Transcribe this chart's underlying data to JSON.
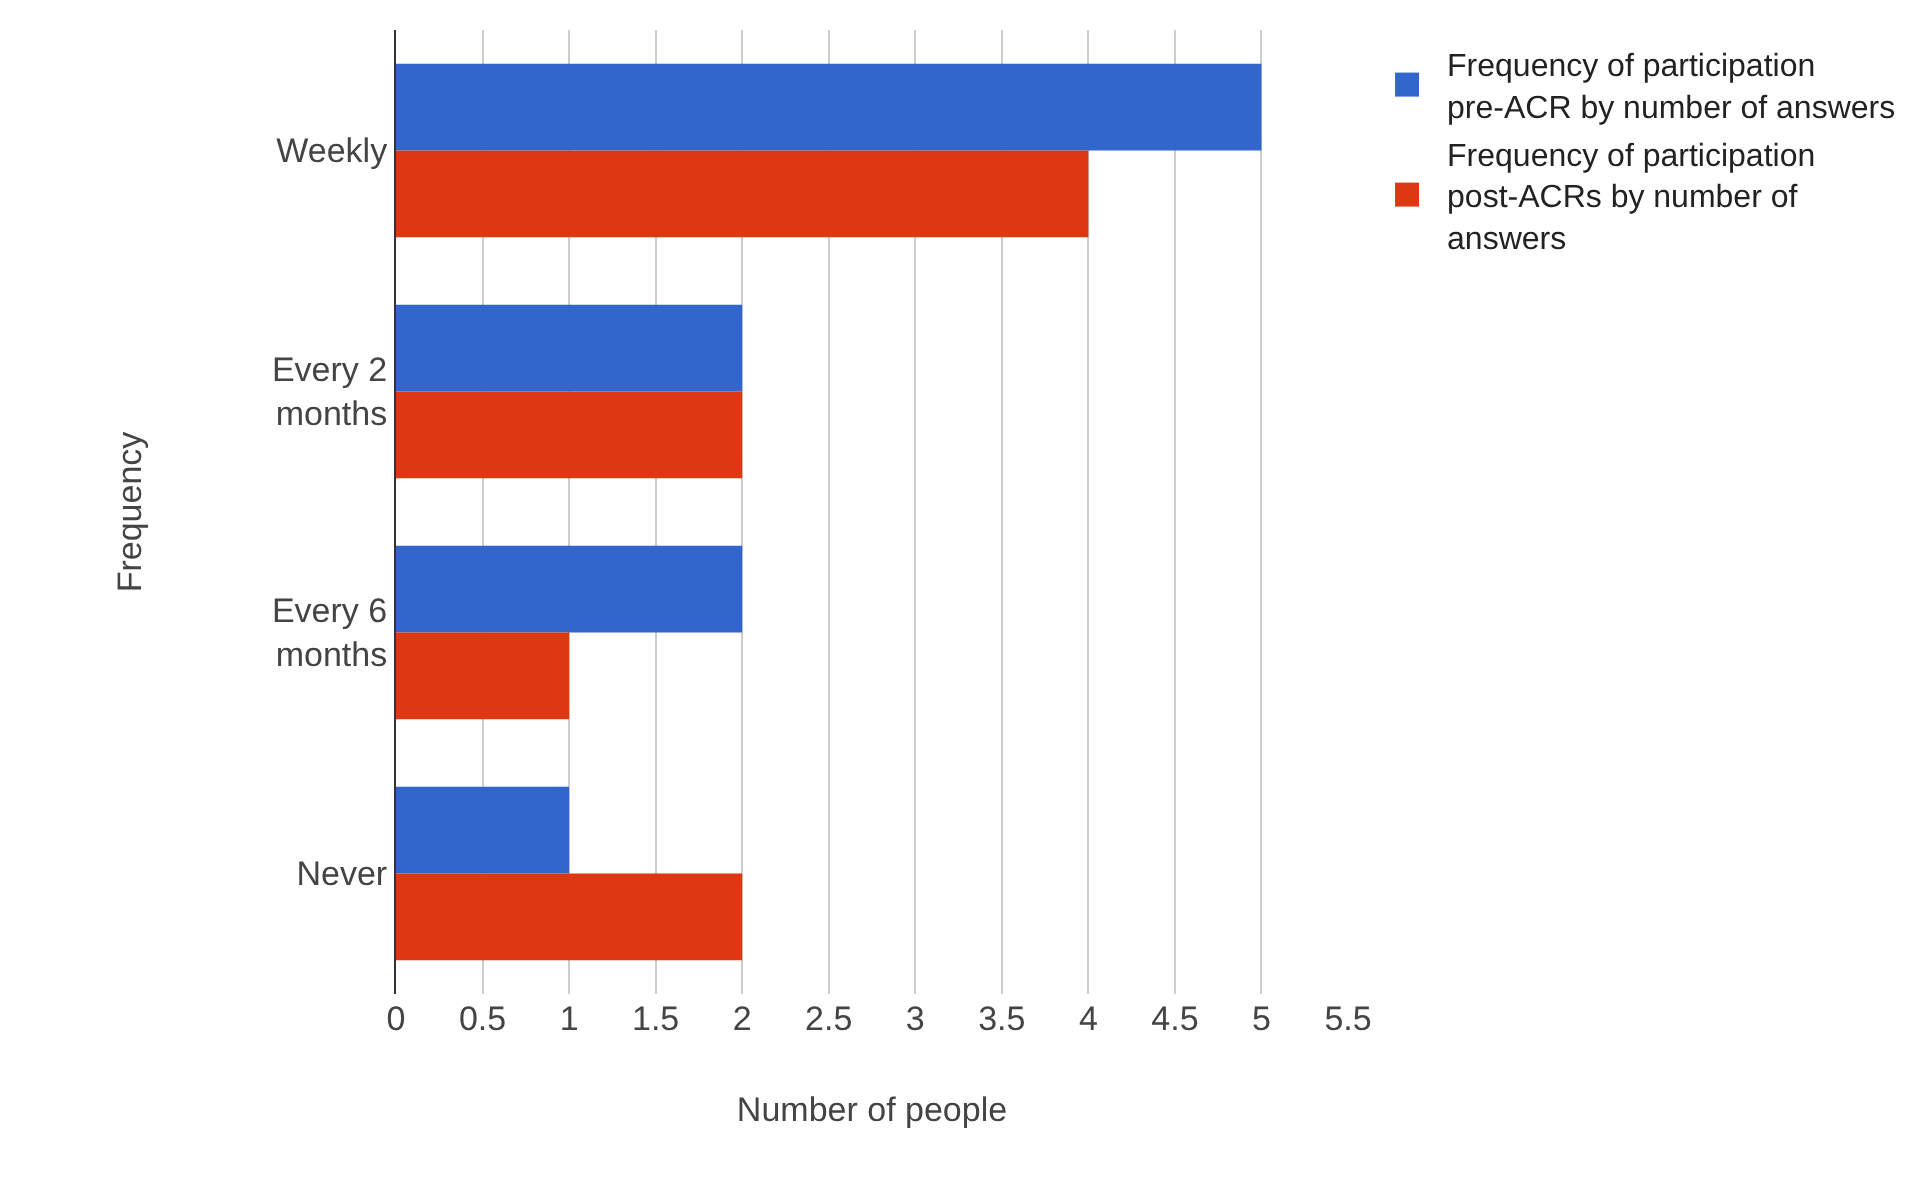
{
  "chart_data": {
    "type": "bar",
    "orientation": "horizontal",
    "xlabel": "Number of people",
    "ylabel": "Frequency",
    "categories": [
      "Weekly",
      "Every 2 months",
      "Every 6 months",
      "Never"
    ],
    "series": [
      {
        "name": "Frequency of participation pre-ACR by number of answers",
        "color": "#3366cc",
        "values": [
          5,
          2,
          2,
          1
        ]
      },
      {
        "name": "Frequency of participation post-ACRs by number of answers",
        "color": "#dc3912",
        "values": [
          4,
          2,
          1,
          2
        ]
      }
    ],
    "xlim": [
      0,
      5.5
    ],
    "xticks": [
      0,
      0.5,
      1,
      1.5,
      2,
      2.5,
      3,
      3.5,
      4,
      4.5,
      5,
      5.5
    ],
    "grid": "x",
    "legend": "top right"
  }
}
